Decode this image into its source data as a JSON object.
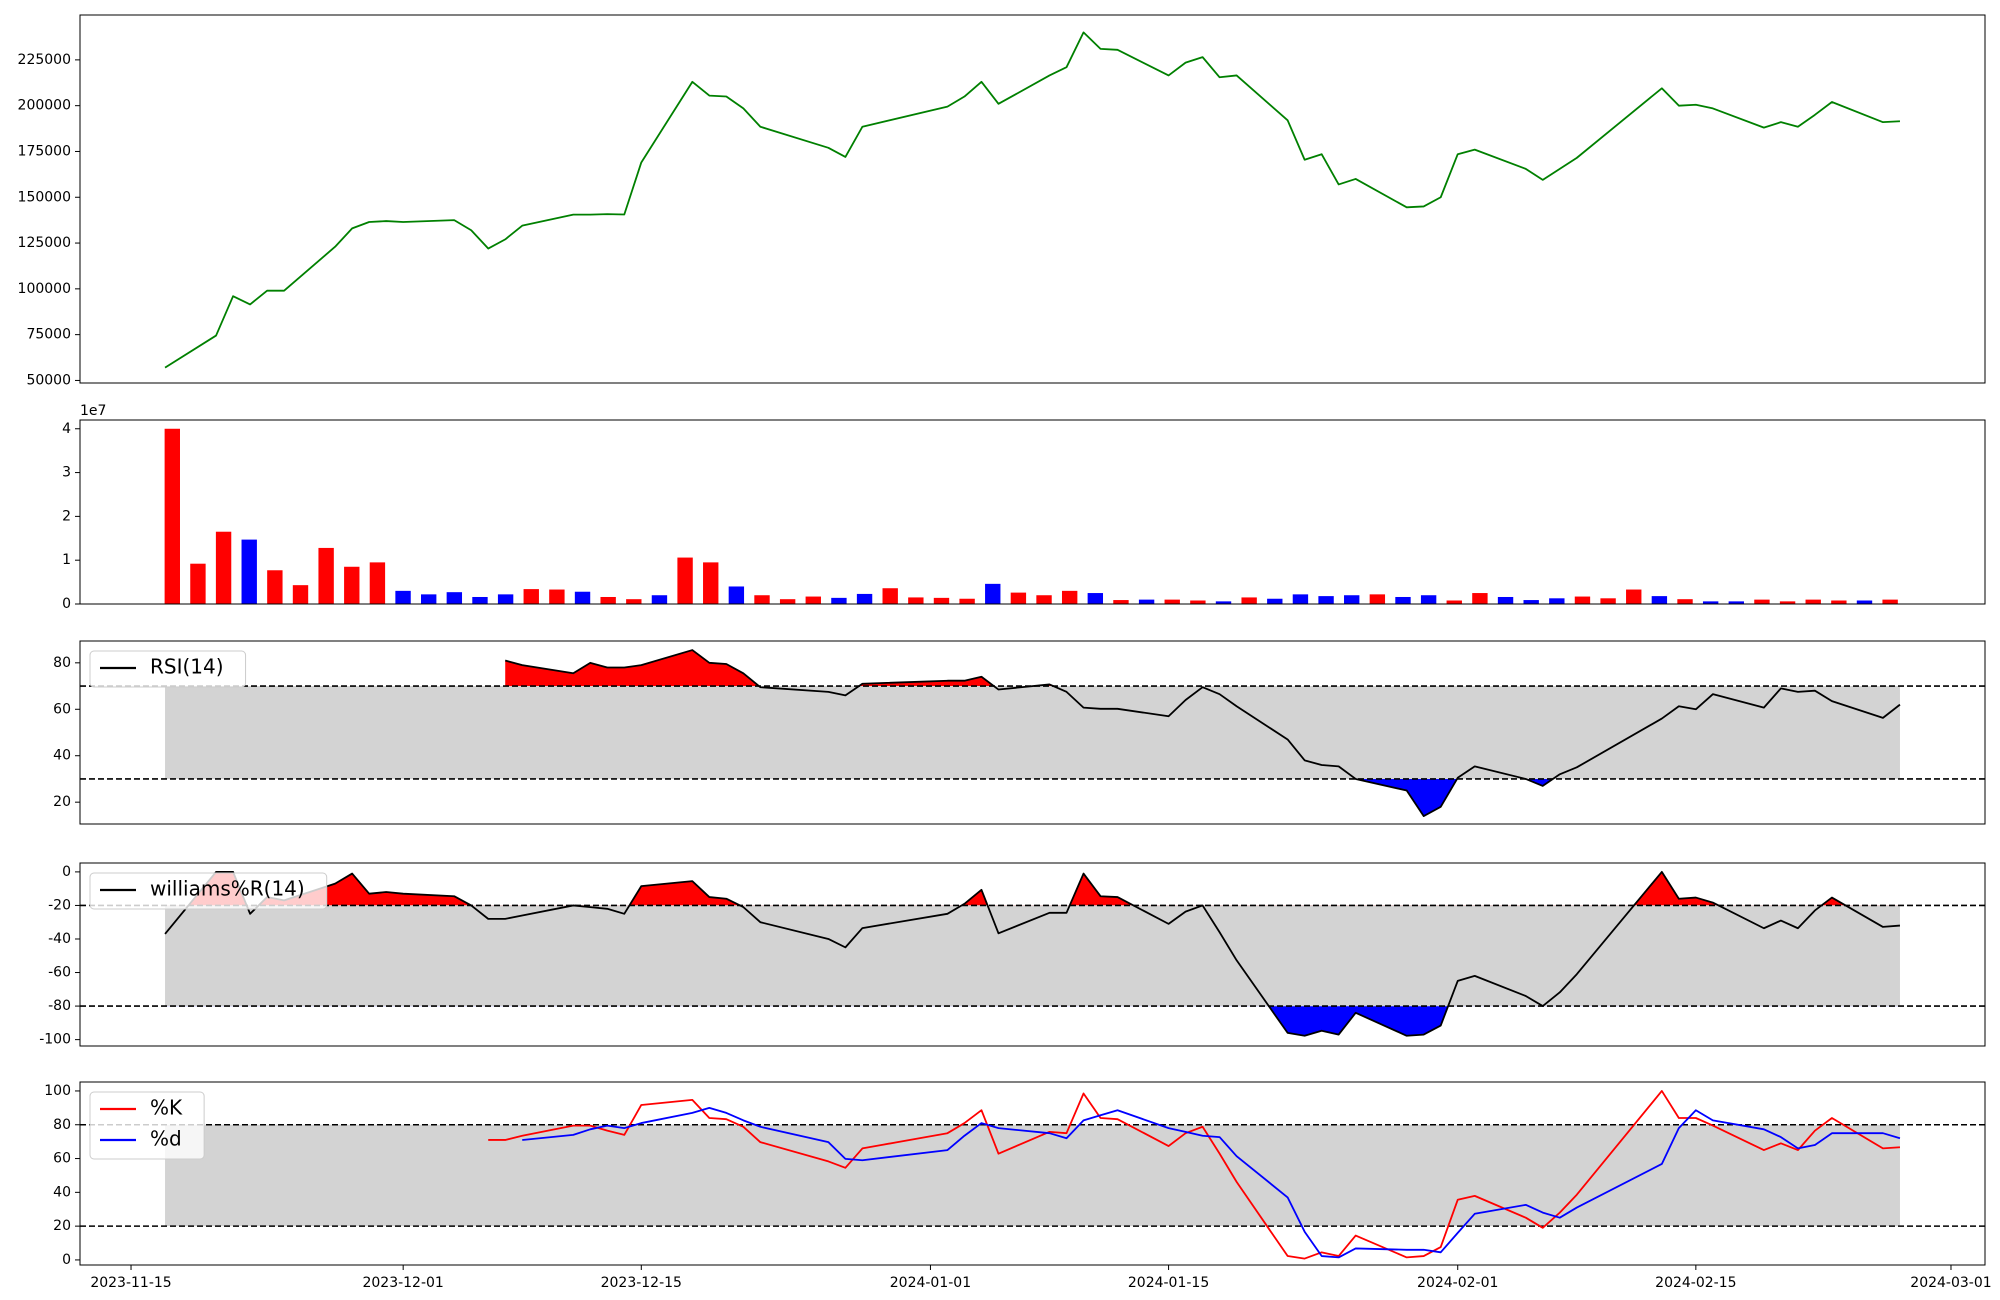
{
  "chart_data": [
    {
      "type": "line",
      "x": [
        "2023-11-17",
        "2023-11-20",
        "2023-11-21",
        "2023-11-22",
        "2023-11-23",
        "2023-11-24",
        "2023-11-27",
        "2023-11-28",
        "2023-11-29",
        "2023-11-30",
        "2023-12-01",
        "2023-12-04",
        "2023-12-05",
        "2023-12-06",
        "2023-12-07",
        "2023-12-08",
        "2023-12-11",
        "2023-12-12",
        "2023-12-13",
        "2023-12-14",
        "2023-12-15",
        "2023-12-18",
        "2023-12-19",
        "2023-12-20",
        "2023-12-21",
        "2023-12-22",
        "2023-12-26",
        "2023-12-27",
        "2023-12-28",
        "2024-01-02",
        "2024-01-03",
        "2024-01-04",
        "2024-01-05",
        "2024-01-08",
        "2024-01-09",
        "2024-01-10",
        "2024-01-11",
        "2024-01-12",
        "2024-01-15",
        "2024-01-16",
        "2024-01-17",
        "2024-01-18",
        "2024-01-19",
        "2024-01-22",
        "2024-01-23",
        "2024-01-24",
        "2024-01-25",
        "2024-01-26",
        "2024-01-29",
        "2024-01-30",
        "2024-01-31",
        "2024-02-01",
        "2024-02-02",
        "2024-02-05",
        "2024-02-06",
        "2024-02-07",
        "2024-02-08",
        "2024-02-13",
        "2024-02-14",
        "2024-02-15",
        "2024-02-16",
        "2024-02-19",
        "2024-02-20",
        "2024-02-21",
        "2024-02-22",
        "2024-02-23",
        "2024-02-26",
        "2024-02-27"
      ],
      "values": [
        57000,
        74500,
        96000,
        91500,
        99000,
        99000,
        123000,
        133000,
        136500,
        137000,
        136500,
        137500,
        132000,
        122000,
        127000,
        134500,
        140500,
        140500,
        140800,
        140600,
        169000,
        213000,
        205500,
        205000,
        198500,
        188500,
        177000,
        172000,
        188500,
        199500,
        205000,
        213000,
        201000,
        216500,
        221000,
        240000,
        231000,
        230500,
        216500,
        223500,
        226500,
        215500,
        216500,
        192000,
        170500,
        173500,
        157000,
        160000,
        144500,
        145000,
        150000,
        173500,
        176000,
        165500,
        159500,
        165500,
        171500,
        209500,
        200000,
        200500,
        198500,
        188000,
        191000,
        188500,
        195000,
        202000,
        191000,
        191500
      ],
      "color": "green",
      "xlim": [
        "2023-11-12",
        "2024-03-03"
      ],
      "ylim": [
        48600,
        249500
      ],
      "yticks": [
        50000,
        75000,
        100000,
        125000,
        150000,
        175000,
        200000,
        225000
      ]
    },
    {
      "type": "bar",
      "values": [
        40000000,
        9200000,
        16500000,
        14700000,
        7700000,
        4300000,
        12800000,
        8500000,
        9500000,
        3000000,
        2200000,
        2700000,
        1600000,
        2200000,
        3400000,
        3300000,
        2800000,
        1600000,
        1100000,
        2000000,
        10600000,
        9500000,
        4000000,
        2000000,
        1100000,
        1700000,
        1400000,
        2300000,
        3600000,
        1500000,
        1400000,
        1200000,
        4600000,
        2600000,
        2000000,
        3000000,
        2500000,
        900000,
        1000000,
        1000000,
        800000,
        600000,
        1500000,
        1200000,
        2200000,
        1800000,
        2000000,
        2200000,
        1600000,
        2000000,
        800000,
        2500000,
        1600000,
        900000,
        1300000,
        1700000,
        1300000,
        3300000,
        1800000,
        1100000,
        600000,
        600000,
        1000000,
        600000,
        1000000,
        800000,
        800000,
        1000000
      ],
      "colors": [
        "red",
        "red",
        "red",
        "blue",
        "red",
        "red",
        "red",
        "red",
        "red",
        "blue",
        "blue",
        "blue",
        "blue",
        "blue",
        "red",
        "red",
        "blue",
        "red",
        "red",
        "blue",
        "red",
        "red",
        "blue",
        "red",
        "red",
        "red",
        "blue",
        "blue",
        "red",
        "red",
        "red",
        "red",
        "blue",
        "red",
        "red",
        "red",
        "blue",
        "red",
        "blue",
        "red",
        "red",
        "blue",
        "red",
        "blue",
        "blue",
        "blue",
        "blue",
        "red",
        "blue",
        "blue",
        "red",
        "red",
        "blue",
        "blue",
        "blue",
        "red",
        "red",
        "red",
        "blue",
        "red",
        "blue",
        "blue",
        "red",
        "red",
        "red",
        "red",
        "blue",
        "red"
      ],
      "xlim": [
        -3.6,
        70.7
      ],
      "ylim": [
        0,
        42000000
      ],
      "yticks": [
        0,
        {
          "value": 10000000,
          "label": "1"
        },
        {
          "value": 20000000,
          "label": "2"
        },
        {
          "value": 30000000,
          "label": "3"
        },
        {
          "value": 40000000,
          "label": "4"
        }
      ],
      "offset_label": "1e7"
    },
    {
      "type": "line",
      "x": [
        "2023-11-17",
        "2023-11-20",
        "2023-11-21",
        "2023-11-22",
        "2023-11-23",
        "2023-11-24",
        "2023-11-27",
        "2023-11-28",
        "2023-11-29",
        "2023-11-30",
        "2023-12-01",
        "2023-12-04",
        "2023-12-05",
        "2023-12-06",
        "2023-12-07",
        "2023-12-08",
        "2023-12-11",
        "2023-12-12",
        "2023-12-13",
        "2023-12-14",
        "2023-12-15",
        "2023-12-18",
        "2023-12-19",
        "2023-12-20",
        "2023-12-21",
        "2023-12-22",
        "2023-12-26",
        "2023-12-27",
        "2023-12-28",
        "2024-01-02",
        "2024-01-03",
        "2024-01-04",
        "2024-01-05",
        "2024-01-08",
        "2024-01-09",
        "2024-01-10",
        "2024-01-11",
        "2024-01-12",
        "2024-01-15",
        "2024-01-16",
        "2024-01-17",
        "2024-01-18",
        "2024-01-19",
        "2024-01-22",
        "2024-01-23",
        "2024-01-24",
        "2024-01-25",
        "2024-01-26",
        "2024-01-29",
        "2024-01-30",
        "2024-01-31",
        "2024-02-01",
        "2024-02-02",
        "2024-02-05",
        "2024-02-06",
        "2024-02-07",
        "2024-02-08",
        "2024-02-13",
        "2024-02-14",
        "2024-02-15",
        "2024-02-16",
        "2024-02-19",
        "2024-02-20",
        "2024-02-21",
        "2024-02-22",
        "2024-02-23",
        "2024-02-26",
        "2024-02-27"
      ],
      "series": [
        {
          "name": "RSI(14)",
          "color": "black",
          "values": [
            null,
            null,
            null,
            null,
            null,
            null,
            null,
            null,
            null,
            null,
            null,
            null,
            null,
            null,
            81,
            79,
            75.5,
            80,
            78,
            78,
            79,
            85.5,
            80,
            79.5,
            75.5,
            69.5,
            67.5,
            66,
            71,
            72.3,
            72.3,
            74,
            68.5,
            70.7,
            67.5,
            60.7,
            60.2,
            60.2,
            57,
            64,
            69.5,
            66.5,
            61.3,
            47,
            38,
            36,
            35.4,
            30,
            25,
            14,
            18,
            30.5,
            35.4,
            30,
            27,
            32,
            35,
            56,
            61.3,
            60,
            66.5,
            60.7,
            69,
            67.5,
            68,
            63.5,
            56.3,
            62
          ]
        }
      ],
      "band": [
        30,
        70
      ],
      "band_color": "lightgray",
      "hlines": [
        70,
        30
      ],
      "fill_above": {
        "level": 70,
        "color": "red"
      },
      "fill_below": {
        "level": 30,
        "color": "blue"
      },
      "legend": "upper left",
      "xlim": [
        "2023-11-12",
        "2024-03-03"
      ],
      "ylim": [
        10.6,
        89.4
      ],
      "yticks": [
        20,
        40,
        60,
        80
      ]
    },
    {
      "type": "line",
      "x": [
        "2023-11-17",
        "2023-11-20",
        "2023-11-21",
        "2023-11-22",
        "2023-11-23",
        "2023-11-24",
        "2023-11-27",
        "2023-11-28",
        "2023-11-29",
        "2023-11-30",
        "2023-12-01",
        "2023-12-04",
        "2023-12-05",
        "2023-12-06",
        "2023-12-07",
        "2023-12-08",
        "2023-12-11",
        "2023-12-12",
        "2023-12-13",
        "2023-12-14",
        "2023-12-15",
        "2023-12-18",
        "2023-12-19",
        "2023-12-20",
        "2023-12-21",
        "2023-12-22",
        "2023-12-26",
        "2023-12-27",
        "2023-12-28",
        "2024-01-02",
        "2024-01-03",
        "2024-01-04",
        "2024-01-05",
        "2024-01-08",
        "2024-01-09",
        "2024-01-10",
        "2024-01-11",
        "2024-01-12",
        "2024-01-15",
        "2024-01-16",
        "2024-01-17",
        "2024-01-18",
        "2024-01-19",
        "2024-01-22",
        "2024-01-23",
        "2024-01-24",
        "2024-01-25",
        "2024-01-26",
        "2024-01-29",
        "2024-01-30",
        "2024-01-31",
        "2024-02-01",
        "2024-02-02",
        "2024-02-05",
        "2024-02-06",
        "2024-02-07",
        "2024-02-08",
        "2024-02-13",
        "2024-02-14",
        "2024-02-15",
        "2024-02-16",
        "2024-02-19",
        "2024-02-20",
        "2024-02-21",
        "2024-02-22",
        "2024-02-23",
        "2024-02-26",
        "2024-02-27"
      ],
      "series": [
        {
          "name": "williams%R(14)",
          "color": "black",
          "values": [
            -37,
            0,
            0,
            -25,
            -15,
            -17,
            -7,
            -1,
            -13,
            -12,
            -13,
            -14.5,
            -20,
            -28,
            -28,
            -26,
            -20,
            -21,
            -22,
            -25,
            -8.5,
            -5.5,
            -15,
            -16,
            -21,
            -30,
            -40,
            -45,
            -33.5,
            -25,
            -19,
            -10.7,
            -36.6,
            -24.4,
            -24.4,
            -1,
            -14.5,
            -15,
            -31,
            -23.7,
            -20,
            -36,
            -52.7,
            -96,
            -97.7,
            -94.7,
            -97,
            -84,
            -97.7,
            -97,
            -91.6,
            -65,
            -62,
            -74,
            -80,
            -71.8,
            -61,
            0,
            -16,
            -15.3,
            -18.3,
            -33.6,
            -29,
            -33.6,
            -23,
            -15.3,
            -32.8,
            -32
          ]
        }
      ],
      "band": [
        -80,
        -20
      ],
      "band_color": "lightgray",
      "hlines": [
        -20,
        -80
      ],
      "fill_above": {
        "level": -20,
        "color": "red"
      },
      "fill_below": {
        "level": -80,
        "color": "blue"
      },
      "legend": "upper left",
      "xlim": [
        "2023-11-12",
        "2024-03-03"
      ],
      "ylim": [
        -103.8,
        5.3
      ],
      "yticks": [
        -100,
        -80,
        -60,
        -40,
        -20,
        0
      ]
    },
    {
      "type": "line",
      "x": [
        "2023-11-17",
        "2023-11-20",
        "2023-11-21",
        "2023-11-22",
        "2023-11-23",
        "2023-11-24",
        "2023-11-27",
        "2023-11-28",
        "2023-11-29",
        "2023-11-30",
        "2023-12-01",
        "2023-12-04",
        "2023-12-05",
        "2023-12-06",
        "2023-12-07",
        "2023-12-08",
        "2023-12-11",
        "2023-12-12",
        "2023-12-13",
        "2023-12-14",
        "2023-12-15",
        "2023-12-18",
        "2023-12-19",
        "2023-12-20",
        "2023-12-21",
        "2023-12-22",
        "2023-12-26",
        "2023-12-27",
        "2023-12-28",
        "2024-01-02",
        "2024-01-03",
        "2024-01-04",
        "2024-01-05",
        "2024-01-08",
        "2024-01-09",
        "2024-01-10",
        "2024-01-11",
        "2024-01-12",
        "2024-01-15",
        "2024-01-16",
        "2024-01-17",
        "2024-01-18",
        "2024-01-19",
        "2024-01-22",
        "2024-01-23",
        "2024-01-24",
        "2024-01-25",
        "2024-01-26",
        "2024-01-29",
        "2024-01-30",
        "2024-01-31",
        "2024-02-01",
        "2024-02-02",
        "2024-02-05",
        "2024-02-06",
        "2024-02-07",
        "2024-02-08",
        "2024-02-13",
        "2024-02-14",
        "2024-02-15",
        "2024-02-16",
        "2024-02-19",
        "2024-02-20",
        "2024-02-21",
        "2024-02-22",
        "2024-02-23",
        "2024-02-26",
        "2024-02-27"
      ],
      "series": [
        {
          "name": "%K",
          "color": "red",
          "values": [
            null,
            null,
            null,
            null,
            null,
            null,
            null,
            null,
            null,
            null,
            null,
            null,
            null,
            71,
            71,
            73.5,
            79.5,
            79.5,
            76.5,
            74,
            91.7,
            94.7,
            84,
            83.3,
            78.8,
            69.7,
            58.3,
            54.5,
            66,
            75,
            81,
            88.6,
            62.9,
            75.8,
            75,
            98.5,
            84,
            83.3,
            67.4,
            75,
            78.8,
            62.9,
            46.2,
            2.3,
            0.8,
            4.5,
            2.3,
            14.4,
            1.5,
            2.3,
            7.6,
            35.6,
            37.9,
            25,
            19,
            28,
            38.6,
            100,
            84,
            84,
            79.5,
            65,
            69,
            65,
            76.5,
            84,
            66,
            66.7
          ]
        },
        {
          "name": "%d",
          "color": "blue",
          "values": [
            null,
            null,
            null,
            null,
            null,
            null,
            null,
            null,
            null,
            null,
            null,
            null,
            null,
            null,
            null,
            71,
            74,
            77.3,
            79.5,
            78,
            81,
            87,
            90,
            87,
            82.6,
            78.8,
            69.7,
            59.8,
            59,
            65,
            73.5,
            81,
            78,
            75,
            72,
            82.6,
            85.6,
            88.6,
            78,
            75.8,
            73.5,
            72.7,
            61.4,
            37,
            16.7,
            2.3,
            1.5,
            6.8,
            6,
            6,
            4.5,
            16,
            27.3,
            32.6,
            28,
            25,
            31,
            56.8,
            78,
            88.6,
            82.6,
            77.3,
            72.7,
            66,
            68,
            75,
            75,
            72
          ]
        }
      ],
      "band": [
        20,
        80
      ],
      "band_color": "lightgray",
      "hlines": [
        80,
        20
      ],
      "legend": "upper left",
      "xlim": [
        "2023-11-12",
        "2024-03-03"
      ],
      "ylim": [
        -3,
        105.3
      ],
      "yticks": [
        0,
        20,
        40,
        60,
        80,
        100
      ],
      "xticks": [
        "2023-11-15",
        "2023-12-01",
        "2023-12-15",
        "2024-01-01",
        "2024-01-15",
        "2024-02-01",
        "2024-02-15",
        "2024-03-01"
      ]
    }
  ]
}
